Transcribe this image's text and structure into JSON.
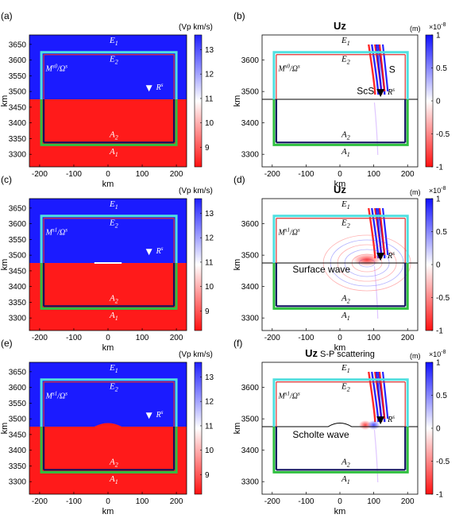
{
  "common": {
    "y_ticks": [
      "3650",
      "3600",
      "3550",
      "3500",
      "3450",
      "3400",
      "3350",
      "3300"
    ],
    "y_ticks_right": [
      "3600",
      "3500",
      "3400",
      "3300"
    ],
    "x_ticks": [
      "-200",
      "-100",
      "0",
      "100",
      "200"
    ],
    "x_label": "km",
    "y_label": "km",
    "vp_colorbar": {
      "label": "(Vp km/s)",
      "ticks": [
        "13",
        "12",
        "11",
        "10",
        "9"
      ],
      "range": [
        8.2,
        13.6
      ]
    },
    "uz_colorbar": {
      "label": "(m)",
      "exponent": "×10",
      "exponent_power": "-8",
      "ticks": [
        "1",
        "0.5",
        "0",
        "-0.5",
        "-1"
      ]
    },
    "labels": {
      "E1": "E",
      "E1sub": "1",
      "E2": "E",
      "E2sub": "2",
      "A1": "A",
      "A1sub": "1",
      "A2": "A",
      "A2sub": "2",
      "R": "R",
      "Rsup": "s",
      "Omega": "/Ω",
      "Omegasup": "s",
      "M": "M"
    }
  },
  "panels": [
    {
      "id": "a",
      "tag": "(a)",
      "type": "vp",
      "msup": "s0",
      "interface": "flat"
    },
    {
      "id": "b",
      "tag": "(b)",
      "type": "uz",
      "title": "Uz",
      "subtitle": "",
      "msup": "s0",
      "interface": "flat",
      "phases": [
        "ScS",
        "S"
      ]
    },
    {
      "id": "c",
      "tag": "(c)",
      "type": "vp",
      "msup": "s1",
      "interface": "flat-marked"
    },
    {
      "id": "d",
      "tag": "(d)",
      "type": "uz",
      "title": "Uz",
      "subtitle": "",
      "msup": "s1",
      "interface": "flat",
      "phases": [
        "Surface wave"
      ]
    },
    {
      "id": "e",
      "tag": "(e)",
      "type": "vp",
      "msup": "s1",
      "interface": "bump"
    },
    {
      "id": "f",
      "tag": "(f)",
      "type": "uz",
      "title": "Uz",
      "subtitle": " S-P scattering",
      "msup": "s1",
      "interface": "bump",
      "phases": [
        "Scholte wave"
      ]
    }
  ],
  "chart_data": [
    {
      "type": "heatmap",
      "panel": "a",
      "xlim": [
        -230,
        230
      ],
      "ylim": [
        3260,
        3680
      ],
      "colorbar_label": "(Vp km/s)",
      "colorbar_range": [
        8.2,
        13.6
      ],
      "layers": [
        {
          "name": "upper",
          "vp": 13.5
        },
        {
          "name": "lower",
          "vp": 8.3
        }
      ],
      "interface_km": 3475,
      "receiver": [
        120,
        3510
      ]
    },
    {
      "type": "heatmap",
      "panel": "b",
      "title": "Uz",
      "xlim": [
        -230,
        230
      ],
      "ylim": [
        3260,
        3680
      ],
      "colorbar_label": "(m)",
      "colorbar_range": [
        -1e-08,
        1e-08
      ],
      "interface_km": 3475,
      "receiver": [
        120,
        3495
      ]
    },
    {
      "type": "heatmap",
      "panel": "c",
      "xlim": [
        -230,
        230
      ],
      "ylim": [
        3260,
        3680
      ],
      "colorbar_label": "(Vp km/s)",
      "colorbar_range": [
        8.2,
        13.6
      ],
      "interface_km": 3475,
      "receiver": [
        120,
        3510
      ]
    },
    {
      "type": "heatmap",
      "panel": "d",
      "title": "Uz",
      "xlim": [
        -230,
        230
      ],
      "ylim": [
        3260,
        3680
      ],
      "colorbar_label": "(m)",
      "colorbar_range": [
        -1e-08,
        1e-08
      ],
      "interface_km": 3475,
      "receiver": [
        120,
        3495
      ]
    },
    {
      "type": "heatmap",
      "panel": "e",
      "xlim": [
        -230,
        230
      ],
      "ylim": [
        3260,
        3680
      ],
      "colorbar_label": "(Vp km/s)",
      "colorbar_range": [
        8.2,
        13.6
      ],
      "interface_km": 3475,
      "receiver": [
        120,
        3510
      ]
    },
    {
      "type": "heatmap",
      "panel": "f",
      "title": "Uz",
      "xlim": [
        -230,
        230
      ],
      "ylim": [
        3260,
        3680
      ],
      "colorbar_label": "(m)",
      "colorbar_range": [
        -1e-08,
        1e-08
      ],
      "interface_km": 3475,
      "receiver": [
        120,
        3495
      ]
    }
  ]
}
